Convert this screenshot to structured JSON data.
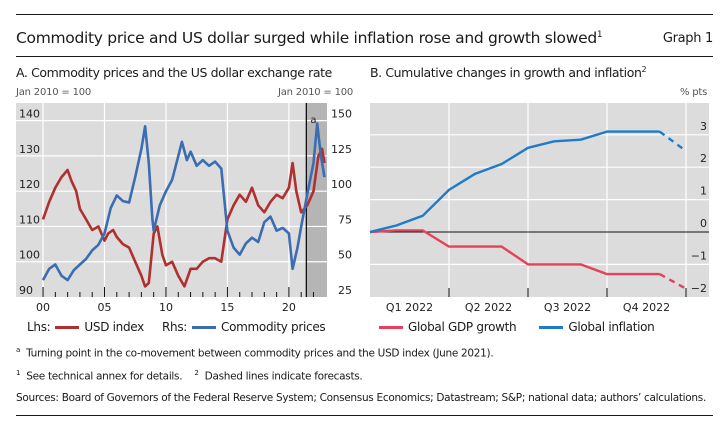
{
  "header": {
    "title": "Commodity price and US dollar surged while inflation rose and growth slowed",
    "title_footnote": "1",
    "graph_label": "Graph 1"
  },
  "panel_a": {
    "title": "A. Commodity prices and the US dollar exchange rate",
    "lhs_unit": "Jan 2010 = 100",
    "rhs_unit": "Jan 2010 = 100",
    "shade_label": "a",
    "legend": {
      "lhs_prefix": "Lhs:",
      "lhs_label": "USD index",
      "rhs_prefix": "Rhs:",
      "rhs_label": "Commodity prices"
    }
  },
  "panel_b": {
    "title": "B. Cumulative changes in growth and inflation",
    "title_footnote": "2",
    "unit": "% pts",
    "legend": {
      "gdp_label": "Global GDP growth",
      "inflation_label": "Global inflation"
    }
  },
  "notes": {
    "a_mark": "a",
    "a_text": "Turning point in the co-movement between commodity prices and the USD index (June 2021).",
    "fn1_mark": "1",
    "fn1_text": "See technical annex for details.",
    "fn2_mark": "2",
    "fn2_text": "Dashed lines indicate forecasts.",
    "sources": "Sources: Board of Governors of the Federal Reserve System; Consensus Economics; Datastream; S&P; national data; authors’ calculations."
  },
  "colors": {
    "usd": "#b1302f",
    "commodity": "#3b6db3",
    "gdp": "#e6405a",
    "inflation": "#1f7bc9",
    "plot_bg": "#dcdcdc",
    "shade": "#b5b5b5"
  },
  "chart_data": [
    {
      "type": "line",
      "title": "A. Commodity prices and the US dollar exchange rate",
      "xlabel": "",
      "xlim": [
        1997.8,
        2023.1
      ],
      "x_ticks": [
        2000,
        2005,
        2010,
        2015,
        2020
      ],
      "x_tick_labels": [
        "00",
        "05",
        "10",
        "15",
        "20"
      ],
      "ylabel_left": "Jan 2010 = 100",
      "ylabel_right": "Jan 2010 = 100",
      "ylim_left": [
        90,
        145
      ],
      "ylim_right": [
        25,
        162.5
      ],
      "y_ticks_left": [
        90,
        100,
        110,
        120,
        130,
        140
      ],
      "y_ticks_right": [
        25,
        50,
        75,
        100,
        125,
        150
      ],
      "grid": true,
      "shaded_region": {
        "from": 2021.42,
        "to": 2023.1,
        "label": "a"
      },
      "legend_position": "bottom",
      "series": [
        {
          "name": "USD index",
          "axis": "left",
          "x": [
            2000,
            2000.5,
            2001,
            2001.5,
            2002,
            2002.3,
            2002.7,
            2003,
            2003.5,
            2004,
            2004.5,
            2005,
            2005.3,
            2005.7,
            2006,
            2006.5,
            2007,
            2007.5,
            2008,
            2008.3,
            2008.6,
            2009,
            2009.3,
            2009.7,
            2010,
            2010.5,
            2011,
            2011.5,
            2012,
            2012.5,
            2013,
            2013.5,
            2014,
            2014.5,
            2015,
            2015.5,
            2016,
            2016.5,
            2017,
            2017.5,
            2018,
            2018.5,
            2019,
            2019.5,
            2020,
            2020.3,
            2020.6,
            2021,
            2021.5,
            2022,
            2022.4,
            2022.7,
            2022.9
          ],
          "values": [
            112,
            117,
            121,
            124,
            126,
            123,
            120,
            115,
            112,
            109,
            110,
            106,
            108,
            109,
            107,
            105,
            104,
            100,
            96,
            93,
            94,
            108,
            110,
            102,
            99,
            100,
            96,
            93,
            98,
            98,
            100,
            101,
            101,
            100,
            112,
            116,
            119,
            117,
            121,
            116,
            114,
            117,
            119,
            118,
            121,
            128,
            120,
            114,
            116,
            120,
            130,
            132,
            128
          ]
        },
        {
          "name": "Commodity prices",
          "axis": "right",
          "x": [
            2000,
            2000.5,
            2001,
            2001.5,
            2002,
            2002.5,
            2003,
            2003.5,
            2004,
            2004.5,
            2005,
            2005.5,
            2006,
            2006.5,
            2007,
            2007.5,
            2008,
            2008.3,
            2008.6,
            2008.9,
            2009,
            2009.5,
            2010,
            2010.5,
            2011,
            2011.3,
            2011.7,
            2012,
            2012.5,
            2013,
            2013.5,
            2014,
            2014.5,
            2015,
            2015.5,
            2016,
            2016.5,
            2017,
            2017.5,
            2018,
            2018.5,
            2019,
            2019.5,
            2020,
            2020.3,
            2020.7,
            2021,
            2021.5,
            2022,
            2022.3,
            2022.6,
            2022.9
          ],
          "values": [
            37,
            45,
            48,
            40,
            37,
            44,
            48,
            52,
            58,
            62,
            70,
            88,
            97,
            93,
            92,
            110,
            130,
            146,
            120,
            80,
            72,
            90,
            100,
            108,
            125,
            135,
            122,
            128,
            118,
            122,
            118,
            121,
            116,
            72,
            60,
            55,
            63,
            67,
            64,
            78,
            82,
            72,
            74,
            70,
            45,
            60,
            75,
            98,
            120,
            148,
            125,
            110
          ]
        }
      ]
    },
    {
      "type": "line",
      "title": "B. Cumulative changes in growth and inflation",
      "xlabel": "",
      "x_categories": [
        "Q1 2022",
        "Q2 2022",
        "Q3 2022",
        "Q4 2022"
      ],
      "x_unit": "months since start of 2022",
      "xlim": [
        0,
        12.8
      ],
      "ylabel_right": "% pts",
      "ylim": [
        -2,
        4
      ],
      "y_ticks": [
        -2,
        -1,
        0,
        1,
        2,
        3
      ],
      "grid": true,
      "legend_position": "bottom",
      "series": [
        {
          "name": "Global GDP growth",
          "x": [
            0,
            1,
            2,
            3,
            4,
            5,
            6,
            7,
            8,
            9,
            10,
            11
          ],
          "values": [
            0,
            0.05,
            0.05,
            -0.45,
            -0.45,
            -0.45,
            -1.0,
            -1.0,
            -1.0,
            -1.3,
            -1.3,
            -1.3
          ],
          "forecast": {
            "x": [
              11,
              12
            ],
            "values": [
              -1.3,
              -1.75
            ]
          }
        },
        {
          "name": "Global inflation",
          "x": [
            0,
            1,
            2,
            3,
            4,
            5,
            6,
            7,
            8,
            9,
            10,
            11
          ],
          "values": [
            0,
            0.2,
            0.5,
            1.3,
            1.8,
            2.1,
            2.6,
            2.8,
            2.85,
            3.1,
            3.1,
            3.1
          ],
          "forecast": {
            "x": [
              11,
              12
            ],
            "values": [
              3.1,
              2.5
            ]
          }
        }
      ]
    }
  ]
}
